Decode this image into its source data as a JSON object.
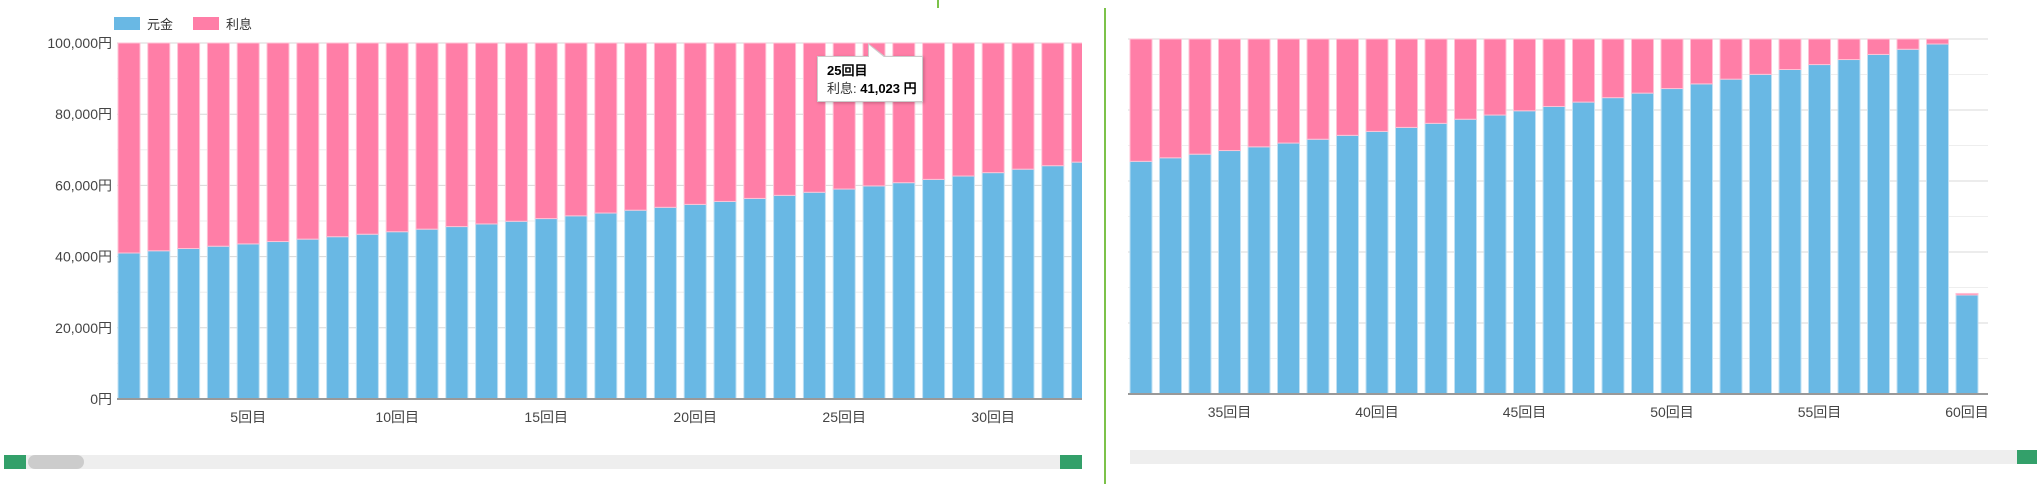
{
  "chart_data": {
    "type": "bar",
    "stacked": true,
    "legend": [
      {
        "name": "元金",
        "color": "#69b8e4"
      },
      {
        "name": "利息",
        "color": "#ff7ea7"
      }
    ],
    "legend_placement": "top-left",
    "x_suffix": "回目",
    "y_suffix": "円",
    "ylim": [
      0,
      100000
    ],
    "y_ticks": [
      "0円",
      "20,000円",
      "40,000円",
      "60,000円",
      "80,000円",
      "100,000円"
    ],
    "x_ticks": [
      5,
      10,
      15,
      20,
      25,
      30,
      35,
      40,
      45,
      50,
      55,
      60
    ],
    "x_tick_labels": [
      "5回目",
      "10回目",
      "15回目",
      "20回目",
      "25回目",
      "30回目",
      "35回目",
      "40回目",
      "45回目",
      "50回目",
      "55回目",
      "60回目"
    ],
    "categories": [
      1,
      2,
      3,
      4,
      5,
      6,
      7,
      8,
      9,
      10,
      11,
      12,
      13,
      14,
      15,
      16,
      17,
      18,
      19,
      20,
      21,
      22,
      23,
      24,
      25,
      26,
      27,
      28,
      29,
      30,
      31,
      32,
      33,
      34,
      35,
      36,
      37,
      38,
      39,
      40,
      41,
      42,
      43,
      44,
      45,
      46,
      47,
      48,
      49,
      50,
      51,
      52,
      53,
      54,
      55,
      56,
      57,
      58,
      59,
      60
    ],
    "series": [
      {
        "name": "元金",
        "values": [
          41013,
          41638,
          42272,
          42917,
          43570,
          44234,
          44908,
          45593,
          46287,
          46993,
          47709,
          48436,
          49174,
          49923,
          50684,
          51456,
          52240,
          53036,
          53844,
          54665,
          55498,
          56343,
          57202,
          58073,
          58977,
          59856,
          60768,
          61694,
          62634,
          63589,
          64557,
          65541,
          66539,
          67553,
          68582,
          69627,
          70688,
          71765,
          72858,
          73969,
          75096,
          76240,
          77402,
          78581,
          79779,
          80994,
          82228,
          83481,
          84753,
          86045,
          87356,
          88687,
          90038,
          91410,
          92803,
          94217,
          95652,
          97110,
          98589,
          27900
        ]
      },
      {
        "name": "利息",
        "values": [
          58987,
          58362,
          57728,
          57083,
          56430,
          55766,
          55092,
          54407,
          53713,
          53007,
          52291,
          51564,
          50826,
          50077,
          49316,
          48544,
          47760,
          46964,
          46156,
          45335,
          44502,
          43657,
          42798,
          41927,
          41023,
          40144,
          39232,
          38306,
          37366,
          36411,
          35443,
          34459,
          33461,
          32447,
          31418,
          30373,
          29312,
          28235,
          27142,
          26031,
          24904,
          23760,
          22598,
          21419,
          20221,
          19006,
          17772,
          16519,
          15247,
          13955,
          12644,
          11313,
          9962,
          8590,
          7197,
          5783,
          4348,
          2890,
          1411,
          425
        ]
      }
    ],
    "views": [
      {
        "name": "left",
        "x_range": [
          1,
          33
        ],
        "show_y_labels": true
      },
      {
        "name": "right",
        "x_range": [
          32,
          60
        ],
        "show_y_labels": false
      }
    ],
    "tooltip": {
      "title": "25回目",
      "label": "利息:",
      "value": "41,023 円"
    }
  }
}
